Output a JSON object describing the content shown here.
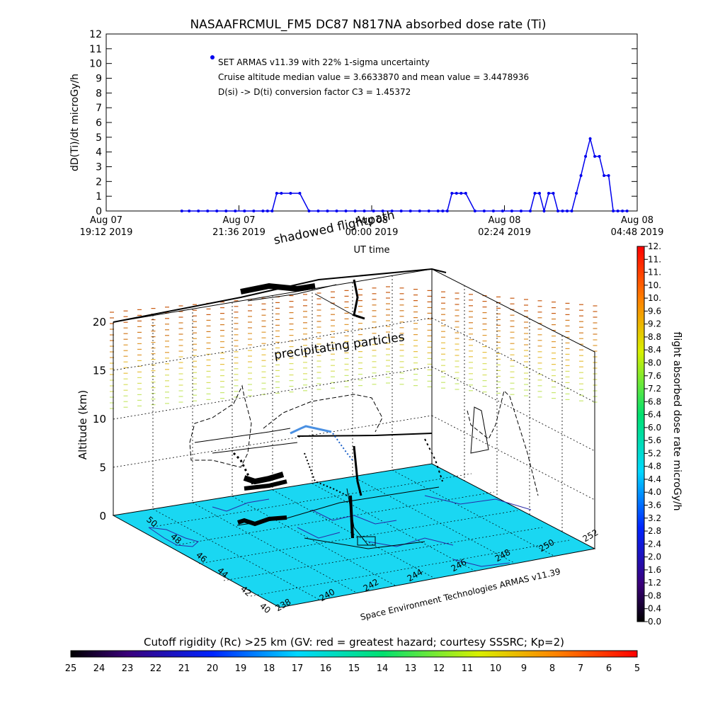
{
  "chart_data": [
    {
      "type": "line",
      "title": "NASAAFRCMUL_FM5 DC87 N817NA absorbed dose rate (Ti)",
      "ylabel": "dD(Ti)/dt microGy/h",
      "xlabel": "UT time",
      "ylim": [
        0,
        12
      ],
      "yticks": [
        "0",
        "1",
        "2",
        "3",
        "4",
        "5",
        "6",
        "7",
        "8",
        "9",
        "10",
        "11",
        "12"
      ],
      "xlim_minutes": [
        0,
        576
      ],
      "xticks": [
        {
          "line1": "Aug 07",
          "line2": "19:12 2019"
        },
        {
          "line1": "Aug 07",
          "line2": "21:36 2019"
        },
        {
          "line1": "Aug 08",
          "line2": "00:00 2019"
        },
        {
          "line1": "Aug 08",
          "line2": "02:24 2019"
        },
        {
          "line1": "Aug 08",
          "line2": "04:48 2019"
        }
      ],
      "legend": [
        "SET ARMAS v11.39 with 22% 1-sigma uncertainty",
        "Cruise altitude median value = 3.6633870 and mean value = 3.4478936",
        "D(si) -> D(ti) conversion factor C3 = 1.45372"
      ],
      "series": [
        {
          "color": "#0000ee",
          "x": [
            82,
            90,
            100,
            110,
            120,
            130,
            140,
            150,
            160,
            170,
            175,
            180,
            185,
            190,
            200,
            210,
            220,
            230,
            240,
            250,
            260,
            270,
            280,
            290,
            300,
            310,
            320,
            330,
            340,
            350,
            360,
            365,
            370,
            375,
            380,
            385,
            390,
            400,
            410,
            420,
            430,
            440,
            450,
            460,
            465,
            470,
            475,
            480,
            485,
            490,
            495,
            500,
            505,
            510,
            515,
            520,
            525,
            530,
            535,
            540,
            545,
            550,
            555,
            560,
            565
          ],
          "y": [
            0,
            0,
            0,
            0,
            0,
            0,
            0,
            0,
            0,
            0,
            0,
            0,
            1.2,
            1.2,
            1.2,
            1.2,
            0,
            0,
            0,
            0,
            0,
            0,
            0,
            0,
            0,
            0,
            0,
            0,
            0,
            0,
            0,
            0,
            0,
            1.2,
            1.2,
            1.2,
            1.2,
            0,
            0,
            0,
            0,
            0,
            0,
            0,
            1.2,
            1.2,
            0,
            1.2,
            1.2,
            0,
            0,
            0,
            0,
            1.2,
            2.4,
            3.7,
            4.9,
            3.7,
            3.7,
            2.4,
            2.4,
            0,
            0,
            0,
            0
          ]
        }
      ]
    },
    {
      "type": "scatter",
      "subtitle": "Space Environment Technologies ARMAS v11.39",
      "zlabel": "Altitude (km)",
      "zticks": [
        "0",
        "5",
        "10",
        "15",
        "20"
      ],
      "lat_ticks": [
        "40",
        "42",
        "44",
        "46",
        "48",
        "50"
      ],
      "lon_ticks": [
        "238",
        "240",
        "242",
        "244",
        "246",
        "248",
        "250",
        "252"
      ],
      "annotations": [
        "shadowed flightpath",
        "precipitating particles"
      ],
      "colorbar": {
        "label": "flight absorbed dose rate microGy/h",
        "ticks": [
          "12.",
          "11.",
          "11.",
          "10.",
          "10.",
          "9.6",
          "9.2",
          "8.8",
          "8.4",
          "8.0",
          "7.6",
          "7.2",
          "6.8",
          "6.4",
          "6.0",
          "5.6",
          "5.2",
          "4.8",
          "4.4",
          "4.0",
          "3.6",
          "3.2",
          "2.8",
          "2.4",
          "2.0",
          "1.6",
          "1.2",
          "0.8",
          "0.4",
          "0.0"
        ]
      }
    },
    {
      "type": "heatmap",
      "title": "Cutoff rigidity (Rc) >25 km (GV: red = greatest hazard; courtesy SSSRC; Kp=2)",
      "ticks": [
        "25",
        "24",
        "23",
        "22",
        "21",
        "20",
        "19",
        "18",
        "17",
        "16",
        "15",
        "14",
        "13",
        "12",
        "11",
        "10",
        "9",
        "8",
        "7",
        "6",
        "5"
      ]
    }
  ],
  "colors": {
    "series": "#0000ee",
    "ground": "#1ad7f2",
    "accent": "#000000"
  }
}
